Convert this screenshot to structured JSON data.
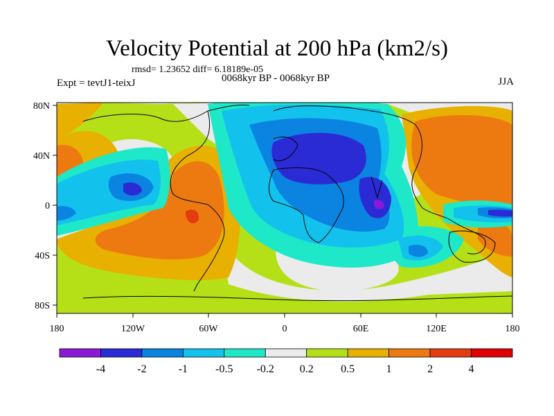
{
  "title": "Velocity Potential at 200 hPa (km2/s)",
  "stats": "rmsd= 1.23652 diff= 6.18189e-05",
  "experiment": "Expt = tevtJ1-teixJ",
  "period": "0068kyr BP - 0068kyr BP",
  "season": "JJA",
  "axes": {
    "lat_labels": [
      "80N",
      "40N",
      "0",
      "40S",
      "80S"
    ],
    "lon_labels": [
      "180",
      "120W",
      "60W",
      "0",
      "60E",
      "120E",
      "180"
    ]
  },
  "colorbar": {
    "labels": [
      "-4",
      "-2",
      "-1",
      "-0.5",
      "-0.2",
      "0.2",
      "0.5",
      "1",
      "2",
      "4"
    ],
    "colors": [
      "#8a1ad8",
      "#2b2bd6",
      "#0a84e0",
      "#12c2ec",
      "#1ee8c8",
      "#ebebeb",
      "#b5e018",
      "#e8b000",
      "#ec7a10",
      "#e23c10",
      "#e00000"
    ]
  },
  "palette": {
    "neg4": "#8a1ad8",
    "neg3": "#2b2bd6",
    "neg2": "#0a84e0",
    "neg1": "#12c2ec",
    "neg05": "#1ee8c8",
    "zero": "#ebebeb",
    "pos05": "#b5e018",
    "pos1": "#e8b000",
    "pos2": "#ec7a10",
    "pos3": "#e23c10",
    "pos4": "#e00000"
  }
}
